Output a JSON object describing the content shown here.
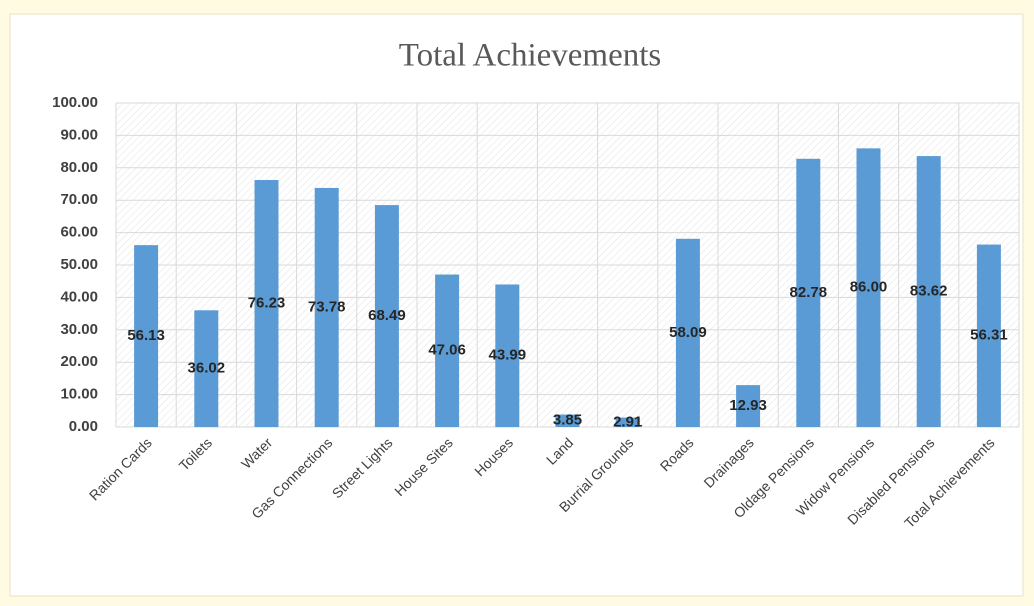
{
  "chart_data": {
    "type": "bar",
    "title": "Total Achievements",
    "categories": [
      "Ration Cards",
      "Toilets",
      "Water",
      "Gas Connections",
      "Street Lights",
      "House Sites",
      "Houses",
      "Land",
      "Burrial Grounds",
      "Roads",
      "Drainages",
      "Oldage Pensions",
      "Widow Pensions",
      "Disabled Pensions",
      "Total Achievements"
    ],
    "values": [
      56.13,
      36.02,
      76.23,
      73.78,
      68.49,
      47.06,
      43.99,
      3.85,
      2.91,
      58.09,
      12.93,
      82.78,
      86.0,
      83.62,
      56.31
    ],
    "value_labels": [
      "56.13",
      "36.02",
      "76.23",
      "73.78",
      "68.49",
      "47.06",
      "43.99",
      "3.85",
      "2.91",
      "58.09",
      "12.93",
      "82.78",
      "86.00",
      "83.62",
      "56.31"
    ],
    "color": "#5b9bd5",
    "ylim": [
      0,
      100
    ],
    "yticks": [
      {
        "value": 0,
        "label": "0.00"
      },
      {
        "value": 10,
        "label": "10.00"
      },
      {
        "value": 20,
        "label": "20.00"
      },
      {
        "value": 30,
        "label": "30.00"
      },
      {
        "value": 40,
        "label": "40.00"
      },
      {
        "value": 50,
        "label": "50.00"
      },
      {
        "value": 60,
        "label": "60.00"
      },
      {
        "value": 70,
        "label": "70.00"
      },
      {
        "value": 80,
        "label": "80.00"
      },
      {
        "value": 90,
        "label": "90.00"
      },
      {
        "value": 100,
        "label": "100.00"
      }
    ],
    "grid": true
  }
}
